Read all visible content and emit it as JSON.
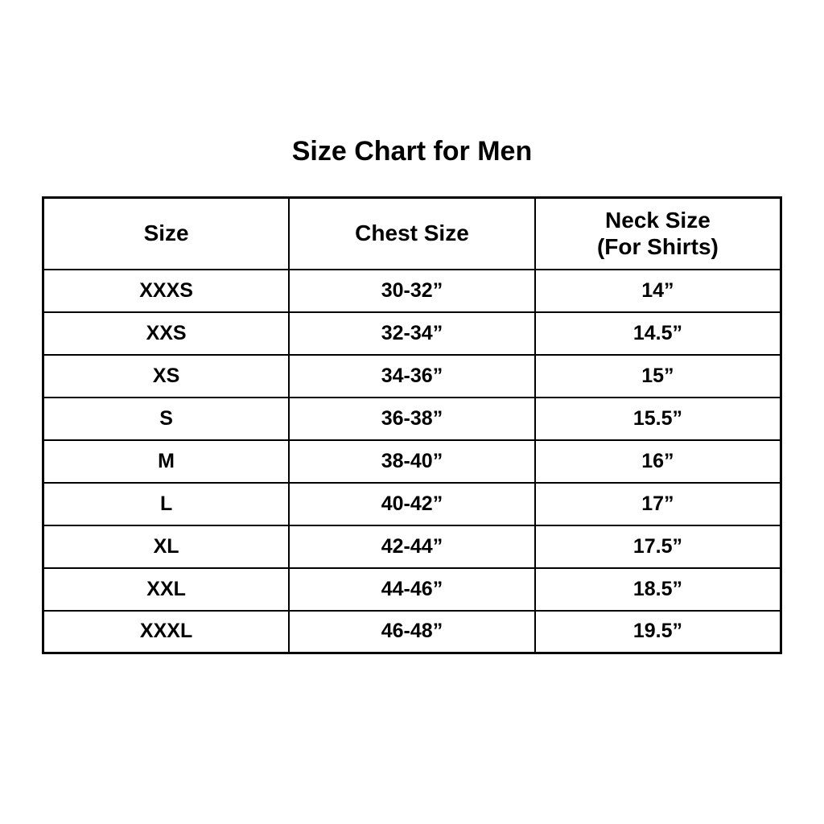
{
  "page": {
    "title": "Size Chart for Men",
    "background_color": "#ffffff",
    "text_color": "#000000",
    "border_color": "#000000"
  },
  "table": {
    "header": {
      "col1": "Size",
      "col2": "Chest Size",
      "col3_line1": "Neck Size",
      "col3_line2": "(For Shirts)"
    }
  },
  "chart_data": {
    "type": "table",
    "title": "Size Chart for Men",
    "columns": [
      "Size",
      "Chest Size",
      "Neck Size (For Shirts)"
    ],
    "rows": [
      [
        "XXXS",
        "30-32”",
        "14”"
      ],
      [
        "XXS",
        "32-34”",
        "14.5”"
      ],
      [
        "XS",
        "34-36”",
        "15”"
      ],
      [
        "S",
        "36-38”",
        "15.5”"
      ],
      [
        "M",
        "38-40”",
        "16”"
      ],
      [
        "L",
        "40-42”",
        "17”"
      ],
      [
        "XL",
        "42-44”",
        "17.5”"
      ],
      [
        "XXL",
        "44-46”",
        "18.5”"
      ],
      [
        "XXXL",
        "46-48”",
        "19.5”"
      ]
    ]
  }
}
